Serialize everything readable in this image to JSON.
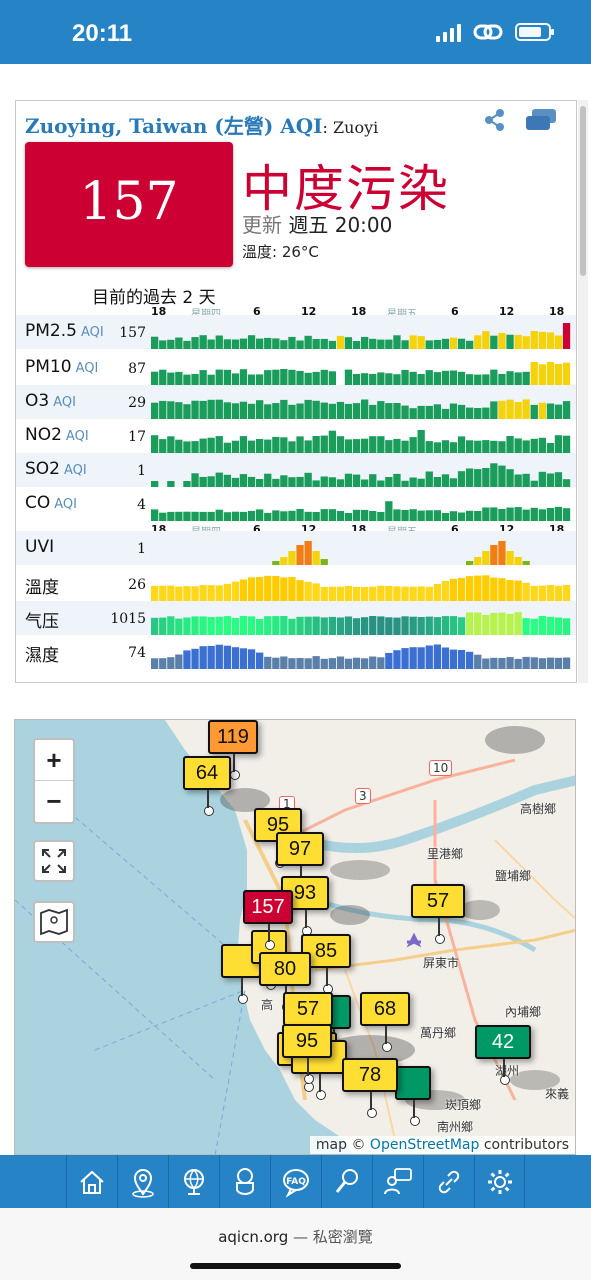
{
  "status_bar": {
    "time": "20:11"
  },
  "station": {
    "title": "Zuoying, Taiwan (左營) AQI",
    "title_suffix": ": Zuoyi",
    "aqi": "157",
    "level": "中度污染",
    "update_label": "更新",
    "update_time": "週五 20:00",
    "temperature_line": "溫度: 26°C",
    "past_title": "目前的過去 2 天",
    "colors": {
      "unhealthy": "#cc0033",
      "moderate": "#ffde33",
      "good": "#009966",
      "usg": "#ff9933"
    }
  },
  "axis_labels": [
    "18",
    "星期四",
    "6",
    "12",
    "18",
    "星期五",
    "6",
    "12",
    "18"
  ],
  "pollutants": [
    {
      "name": "PM2.5",
      "unit": "AQI",
      "value": "157"
    },
    {
      "name": "PM10",
      "unit": "AQI",
      "value": "87"
    },
    {
      "name": "O3",
      "unit": "AQI",
      "value": "29"
    },
    {
      "name": "NO2",
      "unit": "AQI",
      "value": "17"
    },
    {
      "name": "SO2",
      "unit": "AQI",
      "value": "1"
    },
    {
      "name": "CO",
      "unit": "AQI",
      "value": "4"
    },
    {
      "name": "UVI",
      "unit": "",
      "value": "1"
    },
    {
      "name": "溫度",
      "unit": "",
      "value": "26"
    },
    {
      "name": "气压",
      "unit": "",
      "value": "1015"
    },
    {
      "name": "濕度",
      "unit": "",
      "value": "74"
    }
  ],
  "map": {
    "zoom_in": "+",
    "zoom_out": "−",
    "attribution_prefix": "map © ",
    "attribution_link": "OpenStreetMap",
    "attribution_suffix": " contributors",
    "markers": [
      "119",
      "64",
      "95",
      "97",
      "93",
      "157",
      "57",
      "85",
      "80",
      "57",
      "68",
      "95",
      "42",
      "78"
    ],
    "places": [
      "高樹鄉",
      "里港鄉",
      "鹽埔鄉",
      "屏東市",
      "內埔鄉",
      "萬丹鄉",
      "湖州",
      "來義",
      "崁頂鄉",
      "南州鄉",
      "高"
    ],
    "road_signs": [
      "10",
      "3",
      "1"
    ]
  },
  "nav_icons": [
    "home-icon",
    "location-icon",
    "globe-icon",
    "mask-icon",
    "faq-icon",
    "search-icon",
    "chat-icon",
    "link-icon",
    "gear-icon"
  ],
  "browser": {
    "domain": "aqicn.org",
    "mode": " — 私密瀏覽"
  }
}
